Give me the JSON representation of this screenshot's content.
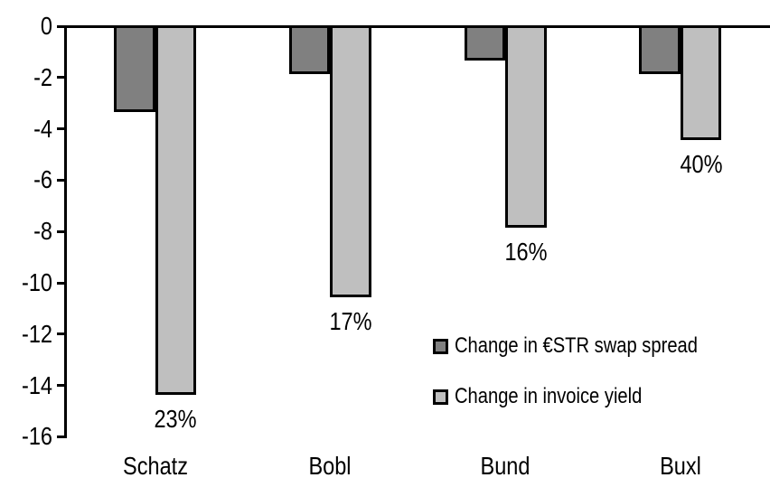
{
  "chart_data": {
    "type": "bar",
    "orientation": "vertical",
    "title": "",
    "xlabel": "",
    "ylabel": "",
    "categories": [
      "Schatz",
      "Bobl",
      "Bund",
      "Buxl"
    ],
    "series": [
      {
        "name": "Change in €STR swap spread",
        "color": "#808080",
        "values": [
          -3.3,
          -1.8,
          -1.3,
          -1.8
        ]
      },
      {
        "name": "Change in invoice yield",
        "color": "#bfbfbf",
        "values": [
          -14.3,
          -10.5,
          -7.8,
          -4.4
        ],
        "data_labels": [
          "23%",
          "17%",
          "16%",
          "40%"
        ]
      }
    ],
    "ylim": [
      -16,
      0
    ],
    "yticks": [
      0,
      -2,
      -4,
      -6,
      -8,
      -10,
      -12,
      -14,
      -16
    ],
    "grid": false,
    "legend_position": "inside-right",
    "bar_border_color": "#000000",
    "axis_color": "#000000",
    "background": "#ffffff",
    "text_color": "#000000"
  }
}
